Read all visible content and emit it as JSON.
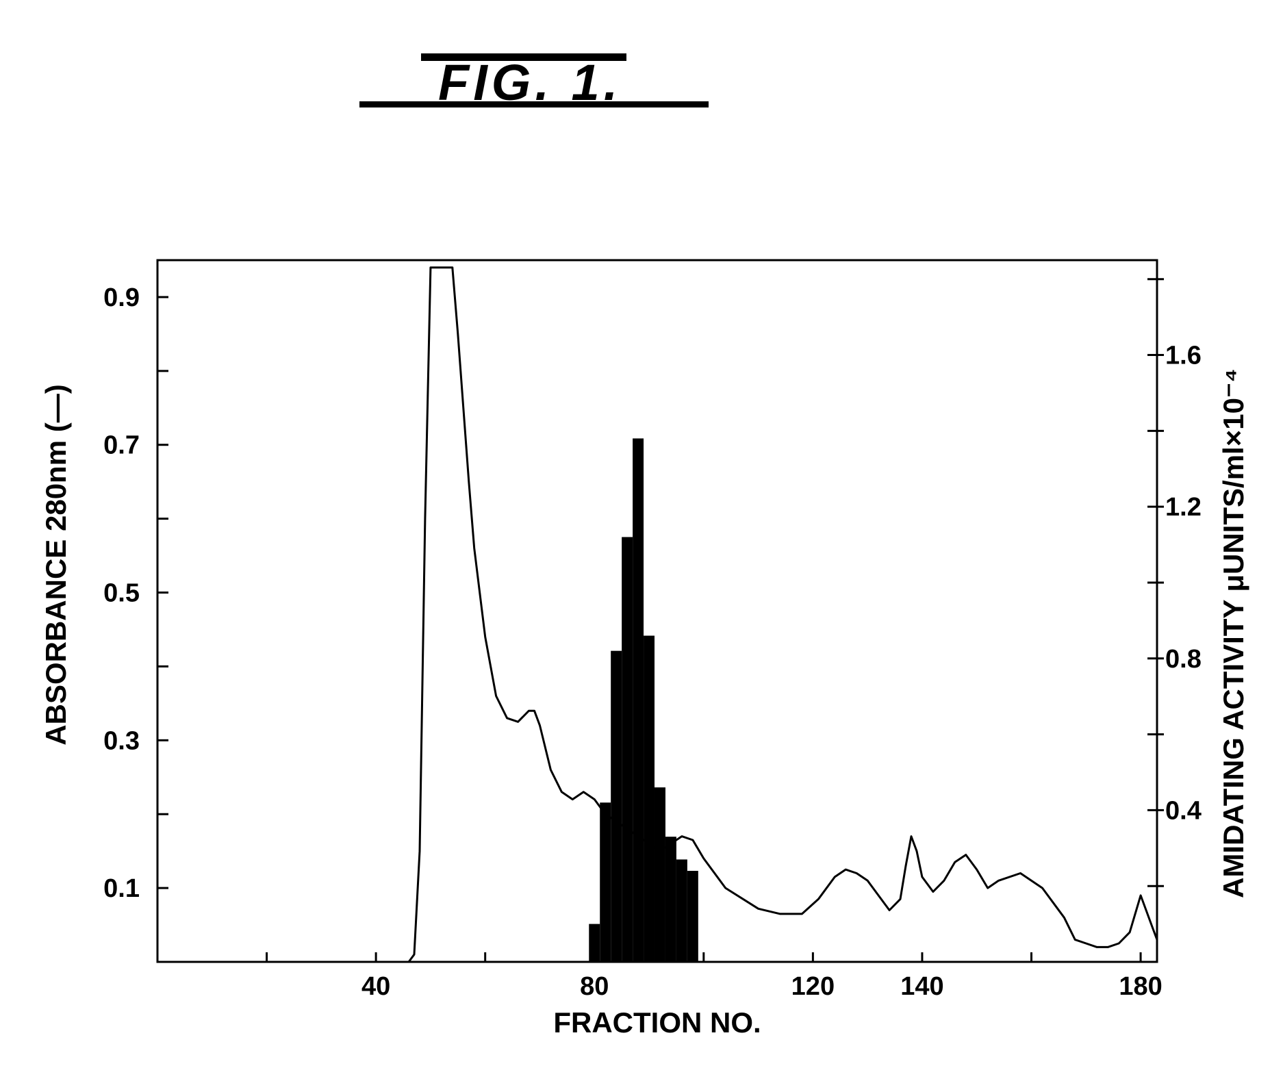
{
  "figure": {
    "label": "FIG. 1."
  },
  "chart_data": {
    "type": "line",
    "xlabel": "FRACTION NO.",
    "ylabel_left": "ABSORBANCE 280nm (—)",
    "ylabel_right": "AMIDATING ACTIVITY μUNITS/ml×10⁻⁴",
    "xlim": [
      0,
      183
    ],
    "ylim_left": [
      0,
      0.95
    ],
    "ylim_right": [
      0,
      1.85
    ],
    "x_ticks": [
      20,
      40,
      60,
      80,
      100,
      120,
      140,
      160,
      180
    ],
    "x_tick_labels": [
      "40",
      "80",
      "120",
      "140",
      "180"
    ],
    "x_tick_label_values": [
      40,
      80,
      120,
      140,
      180
    ],
    "left_ticks": [
      0.1,
      0.2,
      0.3,
      0.4,
      0.5,
      0.6,
      0.7,
      0.8,
      0.9
    ],
    "left_tick_labels": [
      "0.1",
      "0.3",
      "0.5",
      "0.7",
      "0.9"
    ],
    "left_tick_label_values": [
      0.1,
      0.3,
      0.5,
      0.7,
      0.9
    ],
    "right_ticks": [
      0.2,
      0.4,
      0.6,
      0.8,
      1.0,
      1.2,
      1.4,
      1.6,
      1.8
    ],
    "right_tick_labels": [
      "0.4",
      "0.8",
      "1.2",
      "1.6"
    ],
    "right_tick_label_values": [
      0.4,
      0.8,
      1.2,
      1.6
    ],
    "series": [
      {
        "axis": "left",
        "type": "line",
        "x": [
          0,
          46,
          47,
          48,
          49,
          50,
          51,
          52,
          53,
          54,
          55,
          56,
          57,
          58,
          60,
          62,
          64,
          66,
          68,
          69,
          70,
          72,
          74,
          76,
          78,
          80,
          82,
          84,
          86,
          88,
          90,
          92,
          94,
          96,
          98,
          100,
          104,
          110,
          114,
          118,
          121,
          124,
          126,
          128,
          130,
          132,
          134,
          136,
          137,
          138,
          139,
          140,
          142,
          144,
          146,
          148,
          150,
          152,
          154,
          158,
          162,
          166,
          168,
          170,
          172,
          174,
          176,
          178,
          180,
          182,
          183
        ],
        "y": [
          0,
          0,
          0.01,
          0.15,
          0.6,
          0.94,
          0.94,
          0.94,
          0.94,
          0.94,
          0.85,
          0.75,
          0.65,
          0.56,
          0.44,
          0.36,
          0.33,
          0.325,
          0.34,
          0.34,
          0.32,
          0.26,
          0.23,
          0.22,
          0.23,
          0.22,
          0.2,
          0.19,
          0.18,
          0.17,
          0.16,
          0.15,
          0.16,
          0.17,
          0.165,
          0.14,
          0.1,
          0.072,
          0.065,
          0.065,
          0.085,
          0.115,
          0.125,
          0.12,
          0.11,
          0.09,
          0.07,
          0.085,
          0.13,
          0.17,
          0.15,
          0.115,
          0.095,
          0.11,
          0.135,
          0.145,
          0.125,
          0.1,
          0.11,
          0.12,
          0.1,
          0.06,
          0.03,
          0.025,
          0.02,
          0.02,
          0.025,
          0.04,
          0.09,
          0.05,
          0.03
        ]
      },
      {
        "axis": "right",
        "type": "bar",
        "x": [
          80,
          82,
          84,
          86,
          88,
          90,
          92,
          94,
          96,
          98
        ],
        "values": [
          0.1,
          0.42,
          0.82,
          1.12,
          1.38,
          0.86,
          0.46,
          0.33,
          0.27,
          0.24
        ]
      }
    ]
  }
}
